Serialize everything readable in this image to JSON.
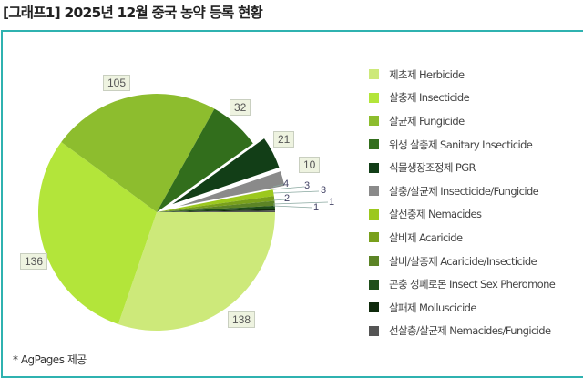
{
  "header": {
    "title": "[그래프1] 2025년 12월 중국 농약 등록 현황"
  },
  "footer": {
    "source": "* AgPages 제공"
  },
  "theme": {
    "frame_border": "#2fb2b0"
  },
  "legend": {
    "items": [
      {
        "label": "제초제 Herbicide",
        "color": "#cde97a"
      },
      {
        "label": "살충제 Insecticide",
        "color": "#b3e53a"
      },
      {
        "label": "살균제 Fungicide",
        "color": "#8dbd2e"
      },
      {
        "label": "위생 살충제 Sanitary Insecticide",
        "color": "#326e1c"
      },
      {
        "label": "식물생장조정제 PGR",
        "color": "#123e17"
      },
      {
        "label": "살충/살균제 Insecticide/Fungicide",
        "color": "#8a8a8a"
      },
      {
        "label": "살선충제 Nemacides",
        "color": "#9cc81e"
      },
      {
        "label": "살비제 Acaricide",
        "color": "#79a01c"
      },
      {
        "label": "살비/살충제 Acaricide/Insecticide",
        "color": "#5c8426"
      },
      {
        "label": "곤충 성페로몬 Insect Sex Pheromone",
        "color": "#1f4e1a"
      },
      {
        "label": "살패제 Molluscicide",
        "color": "#0f2a0c"
      },
      {
        "label": "선살충/살균제 Nemacides/Fungicide",
        "color": "#555555"
      }
    ]
  },
  "labels": {
    "herbicide": "138",
    "insecticide": "136",
    "fungicide": "105",
    "sanitary": "32",
    "pgr": "21",
    "ins_fung": "10",
    "nemacides": "4",
    "acaricide": "3",
    "acari_ins": "3",
    "pheromone": "2",
    "molluscicide": "1",
    "nema_fung": "1"
  },
  "chart_data": {
    "type": "pie",
    "title": "[그래프1] 2025년 12월 중국 농약 등록 현황",
    "categories": [
      "제초제 Herbicide",
      "살충제 Insecticide",
      "살균제 Fungicide",
      "위생 살충제 Sanitary Insecticide",
      "식물생장조정제 PGR",
      "살충/살균제 Insecticide/Fungicide",
      "살선충제 Nemacides",
      "살비제 Acaricide",
      "살비/살충제 Acaricide/Insecticide",
      "곤충 성페로몬 Insect Sex Pheromone",
      "살패제 Molluscicide",
      "선살충/살균제 Nemacides/Fungicide"
    ],
    "values": [
      138,
      136,
      105,
      32,
      21,
      10,
      4,
      3,
      3,
      2,
      1,
      1
    ],
    "colors": [
      "#cde97a",
      "#b3e53a",
      "#8dbd2e",
      "#326e1c",
      "#123e17",
      "#8a8a8a",
      "#9cc81e",
      "#79a01c",
      "#5c8426",
      "#1f4e1a",
      "#0f2a0c",
      "#555555"
    ],
    "exploded": [
      false,
      false,
      false,
      false,
      true,
      true,
      false,
      false,
      false,
      false,
      false,
      false
    ],
    "legend_position": "right",
    "data_labels": true,
    "note": "* AgPages 제공"
  }
}
